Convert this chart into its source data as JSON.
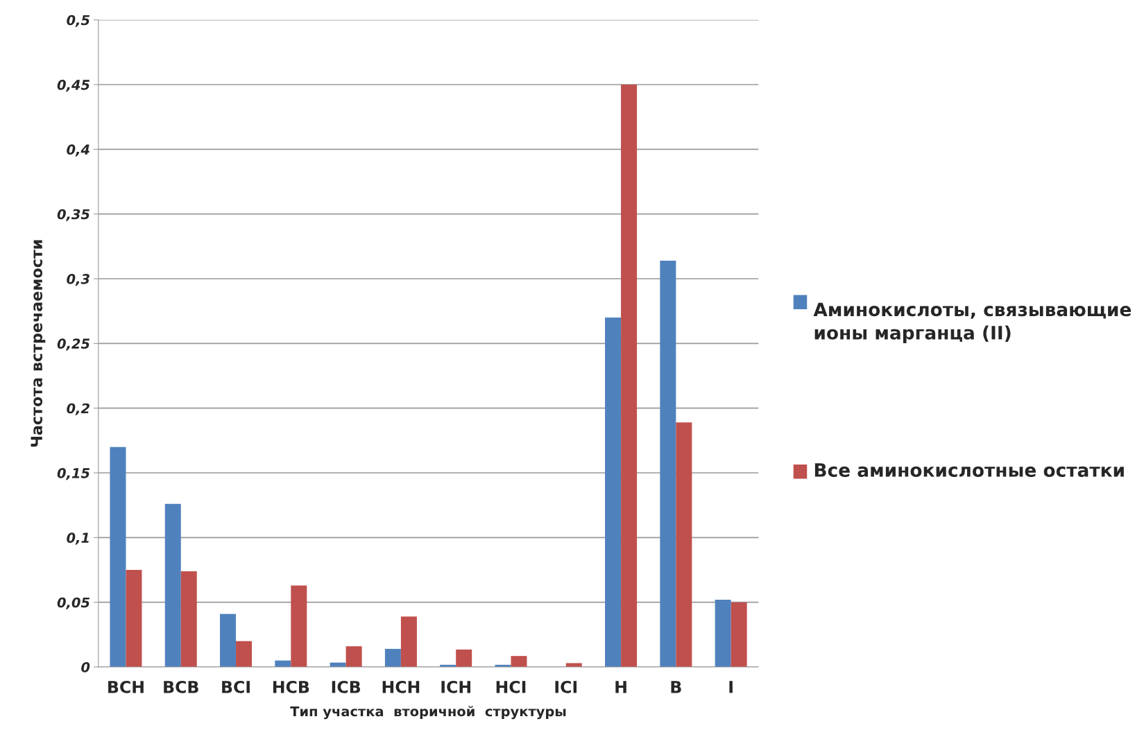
{
  "chart_data": {
    "type": "bar",
    "xlabel": "Тип участка  вторичной  структуры",
    "ylabel": "Частота встречаемости",
    "categories": [
      "BCH",
      "BCB",
      "BCI",
      "HCB",
      "ICB",
      "HCH",
      "ICH",
      "HCI",
      "ICI",
      "H",
      "B",
      "I"
    ],
    "series": [
      {
        "name": "Аминокислоты, связывающие ионы марганца (II)",
        "color": "#4f81bd",
        "values": [
          0.17,
          0.126,
          0.041,
          0.005,
          0.0034,
          0.014,
          0.0017,
          0.0017,
          0,
          0.27,
          0.314,
          0.052
        ]
      },
      {
        "name": "Все аминокислотные остатки",
        "color": "#c0504d",
        "values": [
          0.075,
          0.074,
          0.02,
          0.063,
          0.016,
          0.039,
          0.0135,
          0.0085,
          0.003,
          0.45,
          0.189,
          0.05
        ]
      }
    ],
    "ylim": [
      0,
      0.5
    ],
    "yticks": [
      {
        "value": 0,
        "label": "0"
      },
      {
        "value": 0.05,
        "label": "0,05"
      },
      {
        "value": 0.1,
        "label": "0,1"
      },
      {
        "value": 0.15,
        "label": "0,15"
      },
      {
        "value": 0.2,
        "label": "0,2"
      },
      {
        "value": 0.25,
        "label": "0,25"
      },
      {
        "value": 0.3,
        "label": "0,3"
      },
      {
        "value": 0.35,
        "label": "0,35"
      },
      {
        "value": 0.4,
        "label": "0,4"
      },
      {
        "value": 0.45,
        "label": "0,45"
      },
      {
        "value": 0.5,
        "label": "0,5"
      }
    ],
    "grid": "y",
    "legend": "right"
  }
}
